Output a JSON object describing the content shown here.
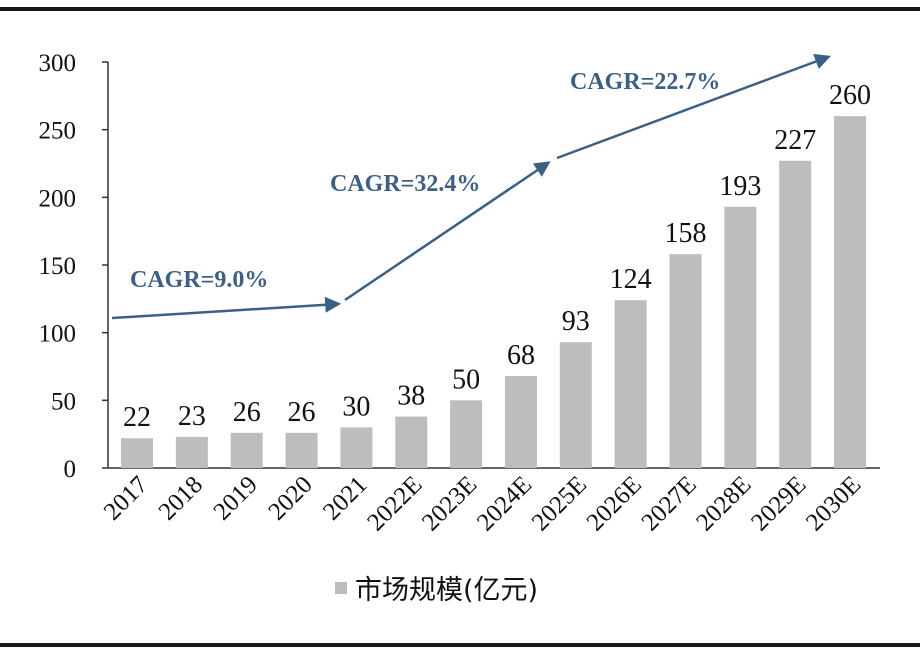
{
  "chart_data": {
    "type": "bar",
    "title": "",
    "xlabel": "",
    "ylabel": "",
    "ylim": [
      0,
      300
    ],
    "yticks": [
      0,
      50,
      100,
      150,
      200,
      250,
      300
    ],
    "grid": false,
    "categories": [
      "2017",
      "2018",
      "2019",
      "2020",
      "2021",
      "2022E",
      "2023E",
      "2024E",
      "2025E",
      "2026E",
      "2027E",
      "2028E",
      "2029E",
      "2030E"
    ],
    "series": [
      {
        "name": "市场规模(亿元)",
        "values": [
          22,
          23,
          26,
          26,
          30,
          38,
          50,
          68,
          93,
          124,
          158,
          193,
          227,
          260
        ],
        "color": "#bdbdbd"
      }
    ],
    "legend": {
      "placement": "bottom",
      "label": "市场规模(亿元)"
    },
    "annotations": [
      {
        "text": "CAGR=9.0%",
        "from": "2017",
        "to": "2021"
      },
      {
        "text": "CAGR=32.4%",
        "from": "2021",
        "to": "2025E"
      },
      {
        "text": "CAGR=22.7%",
        "from": "2025E",
        "to": "2030E"
      }
    ],
    "arrow_color": "#3c5f86"
  }
}
